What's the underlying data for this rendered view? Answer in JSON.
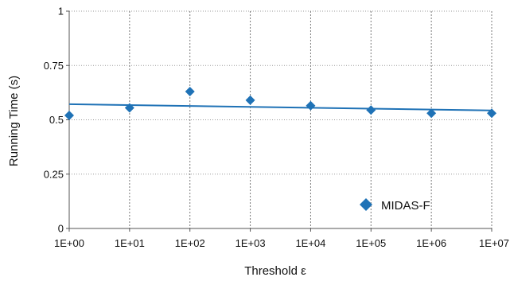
{
  "chart_data": {
    "type": "scatter",
    "title": "",
    "xlabel": "Threshold ε",
    "ylabel": "Running Time (s)",
    "x_scale": "log",
    "x_ticks": [
      1,
      10,
      100,
      1000,
      10000,
      100000,
      1000000,
      10000000
    ],
    "x_tick_labels": [
      "1E+00",
      "1E+01",
      "1E+02",
      "1E+03",
      "1E+04",
      "1E+05",
      "1E+06",
      "1E+07"
    ],
    "xlim": [
      1,
      10000000
    ],
    "ylim": [
      0,
      1
    ],
    "y_ticks": [
      0,
      0.25,
      0.5,
      0.75,
      1
    ],
    "y_tick_labels": [
      "0",
      "0.25",
      "0.5",
      "0.75",
      "1"
    ],
    "grid": true,
    "legend_position": "bottom-right",
    "series": [
      {
        "name": "MIDAS-F",
        "color": "#1f72b6",
        "marker": "diamond",
        "x": [
          1,
          10,
          100,
          1000,
          10000,
          100000,
          1000000,
          10000000
        ],
        "y": [
          0.52,
          0.555,
          0.63,
          0.59,
          0.565,
          0.545,
          0.53,
          0.53
        ]
      }
    ],
    "trendline": {
      "color": "#1f72b6",
      "y_at_xmin": 0.572,
      "y_at_xmax": 0.543
    }
  }
}
